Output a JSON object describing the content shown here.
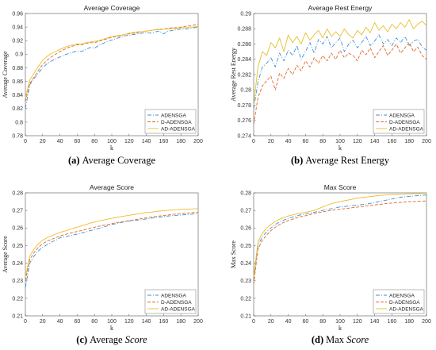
{
  "colors": {
    "ADENSGA": "#3f8fd2",
    "D-ADENSGA": "#e06a2c",
    "AD-ADENSGA": "#e8bf2a",
    "axis": "#555555"
  },
  "chart_data": [
    {
      "type": "line",
      "title": "Average Coverage",
      "xlabel": "k",
      "ylabel": "Average Coverage",
      "xlim": [
        0,
        200
      ],
      "ylim": [
        0.78,
        0.96
      ],
      "xticks": [
        "0",
        "20",
        "40",
        "60",
        "80",
        "100",
        "120",
        "140",
        "160",
        "180",
        "200"
      ],
      "yticks": [
        "0.78",
        "0.8",
        "0.82",
        "0.84",
        "0.86",
        "0.88",
        "0.9",
        "0.92",
        "0.94",
        "0.96"
      ],
      "legend_position": "bottom-right",
      "caption_letter": "(a)",
      "caption_text": "Average Coverage",
      "caption_em": "",
      "x": [
        0,
        5,
        10,
        15,
        20,
        25,
        30,
        35,
        40,
        45,
        50,
        55,
        60,
        65,
        70,
        75,
        80,
        85,
        90,
        95,
        100,
        105,
        110,
        115,
        120,
        125,
        130,
        135,
        140,
        145,
        150,
        155,
        160,
        165,
        170,
        175,
        180,
        185,
        190,
        195,
        200
      ],
      "series": [
        {
          "name": "ADENSGA",
          "style": "dashdot",
          "values": [
            0.82,
            0.855,
            0.864,
            0.872,
            0.88,
            0.886,
            0.89,
            0.893,
            0.896,
            0.899,
            0.901,
            0.903,
            0.905,
            0.904,
            0.907,
            0.91,
            0.909,
            0.913,
            0.916,
            0.919,
            0.921,
            0.923,
            0.925,
            0.927,
            0.928,
            0.929,
            0.93,
            0.931,
            0.932,
            0.931,
            0.933,
            0.934,
            0.93,
            0.934,
            0.935,
            0.936,
            0.937,
            0.937,
            0.938,
            0.939,
            0.94
          ]
        },
        {
          "name": "D-ADENSGA",
          "style": "dashed",
          "values": [
            0.83,
            0.857,
            0.866,
            0.876,
            0.885,
            0.891,
            0.896,
            0.9,
            0.904,
            0.907,
            0.91,
            0.912,
            0.914,
            0.914,
            0.916,
            0.917,
            0.917,
            0.919,
            0.921,
            0.923,
            0.925,
            0.926,
            0.927,
            0.929,
            0.93,
            0.931,
            0.932,
            0.933,
            0.934,
            0.935,
            0.936,
            0.937,
            0.937,
            0.938,
            0.939,
            0.939,
            0.94,
            0.941,
            0.942,
            0.943,
            0.944
          ]
        },
        {
          "name": "AD-ADENSGA",
          "style": "solid",
          "values": [
            0.836,
            0.862,
            0.872,
            0.882,
            0.891,
            0.897,
            0.901,
            0.904,
            0.907,
            0.91,
            0.912,
            0.914,
            0.915,
            0.915,
            0.917,
            0.918,
            0.919,
            0.92,
            0.922,
            0.924,
            0.926,
            0.927,
            0.928,
            0.929,
            0.931,
            0.932,
            0.933,
            0.933,
            0.934,
            0.935,
            0.936,
            0.936,
            0.937,
            0.937,
            0.938,
            0.938,
            0.939,
            0.939,
            0.94,
            0.94,
            0.941
          ]
        }
      ]
    },
    {
      "type": "line",
      "title": "Average Rest Energy",
      "xlabel": "k",
      "ylabel": "Average Rest Energy",
      "xlim": [
        0,
        200
      ],
      "ylim": [
        0.274,
        0.29
      ],
      "xticks": [
        "0",
        "20",
        "40",
        "60",
        "80",
        "100",
        "120",
        "140",
        "160",
        "180",
        "200"
      ],
      "yticks": [
        "0.274",
        "0.276",
        "0.278",
        "0.28",
        "0.282",
        "0.284",
        "0.286",
        "0.288",
        "0.29"
      ],
      "legend_position": "bottom-right",
      "caption_letter": "(b)",
      "caption_text": "Average Rest Energy",
      "caption_em": "",
      "x": [
        0,
        5,
        10,
        15,
        20,
        25,
        30,
        35,
        40,
        45,
        50,
        55,
        60,
        65,
        70,
        75,
        80,
        85,
        90,
        95,
        100,
        105,
        110,
        115,
        120,
        125,
        130,
        135,
        140,
        145,
        150,
        155,
        160,
        165,
        170,
        175,
        180,
        185,
        190,
        195,
        200
      ],
      "series": [
        {
          "name": "ADENSGA",
          "style": "dashdot",
          "values": [
            0.2775,
            0.281,
            0.283,
            0.2835,
            0.2842,
            0.283,
            0.2848,
            0.2838,
            0.2852,
            0.2845,
            0.2858,
            0.284,
            0.285,
            0.2862,
            0.2848,
            0.2866,
            0.286,
            0.287,
            0.2855,
            0.2862,
            0.2868,
            0.285,
            0.286,
            0.2865,
            0.2855,
            0.2862,
            0.287,
            0.2858,
            0.2864,
            0.2872,
            0.286,
            0.2866,
            0.2858,
            0.2868,
            0.2862,
            0.287,
            0.2858,
            0.2864,
            0.2866,
            0.2856,
            0.2852
          ]
        },
        {
          "name": "D-ADENSGA",
          "style": "dashed",
          "values": [
            0.2755,
            0.279,
            0.2805,
            0.2812,
            0.2818,
            0.28,
            0.2822,
            0.2815,
            0.2828,
            0.282,
            0.2832,
            0.2825,
            0.2838,
            0.283,
            0.2842,
            0.2835,
            0.2845,
            0.2838,
            0.2848,
            0.284,
            0.2852,
            0.2842,
            0.2848,
            0.2845,
            0.2838,
            0.2852,
            0.2846,
            0.2855,
            0.2842,
            0.285,
            0.2858,
            0.2845,
            0.2852,
            0.286,
            0.2848,
            0.2855,
            0.2862,
            0.285,
            0.2856,
            0.2845,
            0.284
          ]
        },
        {
          "name": "AD-ADENSGA",
          "style": "solid",
          "values": [
            0.278,
            0.283,
            0.285,
            0.2845,
            0.2862,
            0.2855,
            0.2868,
            0.285,
            0.2872,
            0.2862,
            0.287,
            0.286,
            0.2875,
            0.2865,
            0.2872,
            0.2878,
            0.2868,
            0.288,
            0.287,
            0.2876,
            0.287,
            0.288,
            0.2872,
            0.2868,
            0.2878,
            0.2872,
            0.2882,
            0.2875,
            0.2888,
            0.2878,
            0.2884,
            0.2876,
            0.2886,
            0.288,
            0.2888,
            0.2882,
            0.2892,
            0.288,
            0.2886,
            0.289,
            0.2884
          ]
        }
      ]
    },
    {
      "type": "line",
      "title": "Average Score",
      "xlabel": "k",
      "ylabel": "Average Score",
      "xlim": [
        0,
        200
      ],
      "ylim": [
        0.21,
        0.28
      ],
      "xticks": [
        "0",
        "20",
        "40",
        "60",
        "80",
        "100",
        "120",
        "140",
        "160",
        "180",
        "200"
      ],
      "yticks": [
        "0.21",
        "0.22",
        "0.23",
        "0.24",
        "0.25",
        "0.26",
        "0.27",
        "0.28"
      ],
      "legend_position": "bottom-right",
      "caption_letter": "(c)",
      "caption_text": "Average ",
      "caption_em": "Score",
      "x": [
        0,
        5,
        10,
        15,
        20,
        25,
        30,
        35,
        40,
        45,
        50,
        55,
        60,
        65,
        70,
        75,
        80,
        85,
        90,
        95,
        100,
        105,
        110,
        115,
        120,
        125,
        130,
        135,
        140,
        145,
        150,
        155,
        160,
        165,
        170,
        175,
        180,
        185,
        190,
        195,
        200
      ],
      "series": [
        {
          "name": "ADENSGA",
          "style": "dashdot",
          "values": [
            0.226,
            0.24,
            0.244,
            0.247,
            0.249,
            0.2505,
            0.252,
            0.253,
            0.2545,
            0.255,
            0.2555,
            0.256,
            0.2565,
            0.2572,
            0.2578,
            0.2585,
            0.259,
            0.2598,
            0.2605,
            0.2612,
            0.262,
            0.2625,
            0.263,
            0.2635,
            0.264,
            0.2642,
            0.2645,
            0.2648,
            0.2652,
            0.2655,
            0.266,
            0.2662,
            0.2665,
            0.2668,
            0.267,
            0.2672,
            0.2674,
            0.2676,
            0.2678,
            0.268,
            0.268
          ]
        },
        {
          "name": "D-ADENSGA",
          "style": "dashed",
          "values": [
            0.23,
            0.242,
            0.246,
            0.249,
            0.251,
            0.2525,
            0.2535,
            0.2545,
            0.2555,
            0.2562,
            0.2568,
            0.2575,
            0.258,
            0.2586,
            0.2592,
            0.2598,
            0.2604,
            0.261,
            0.2615,
            0.262,
            0.2625,
            0.263,
            0.2634,
            0.2638,
            0.2642,
            0.2646,
            0.265,
            0.2654,
            0.2658,
            0.2662,
            0.2665,
            0.2668,
            0.2671,
            0.2674,
            0.2677,
            0.268,
            0.2682,
            0.2684,
            0.2686,
            0.2688,
            0.269
          ]
        },
        {
          "name": "AD-ADENSGA",
          "style": "solid",
          "values": [
            0.232,
            0.244,
            0.248,
            0.251,
            0.253,
            0.2545,
            0.2555,
            0.2565,
            0.2575,
            0.2582,
            0.259,
            0.2598,
            0.2605,
            0.2612,
            0.262,
            0.2628,
            0.2634,
            0.264,
            0.2645,
            0.265,
            0.2655,
            0.266,
            0.2664,
            0.2668,
            0.2672,
            0.2676,
            0.268,
            0.2684,
            0.2688,
            0.269,
            0.2693,
            0.2696,
            0.2698,
            0.27,
            0.2702,
            0.2704,
            0.2706,
            0.2707,
            0.2708,
            0.2709,
            0.271
          ]
        }
      ]
    },
    {
      "type": "line",
      "title": "Max Score",
      "xlabel": "k",
      "ylabel": "Max Score",
      "xlim": [
        0,
        200
      ],
      "ylim": [
        0.21,
        0.28
      ],
      "xticks": [
        "0",
        "20",
        "40",
        "60",
        "80",
        "100",
        "120",
        "140",
        "160",
        "180",
        "200"
      ],
      "yticks": [
        "0.21",
        "0.22",
        "0.23",
        "0.24",
        "0.25",
        "0.26",
        "0.27",
        "0.28"
      ],
      "legend_position": "bottom-right",
      "caption_letter": "(d)",
      "caption_text": "Max ",
      "caption_em": "Score",
      "x": [
        0,
        5,
        10,
        15,
        20,
        25,
        30,
        35,
        40,
        45,
        50,
        55,
        60,
        65,
        70,
        75,
        80,
        85,
        90,
        95,
        100,
        105,
        110,
        115,
        120,
        125,
        130,
        135,
        140,
        145,
        150,
        155,
        160,
        165,
        170,
        175,
        180,
        185,
        190,
        195,
        200
      ],
      "series": [
        {
          "name": "ADENSGA",
          "style": "dashdot",
          "values": [
            0.23,
            0.25,
            0.255,
            0.258,
            0.26,
            0.262,
            0.2635,
            0.2645,
            0.2655,
            0.2662,
            0.267,
            0.2675,
            0.268,
            0.2685,
            0.269,
            0.2695,
            0.27,
            0.2705,
            0.271,
            0.2715,
            0.272,
            0.2722,
            0.2725,
            0.2728,
            0.273,
            0.2733,
            0.2736,
            0.274,
            0.2745,
            0.275,
            0.2755,
            0.276,
            0.2765,
            0.277,
            0.2775,
            0.2778,
            0.278,
            0.2782,
            0.2784,
            0.2786,
            0.2788
          ]
        },
        {
          "name": "D-ADENSGA",
          "style": "dashed",
          "values": [
            0.228,
            0.248,
            0.253,
            0.256,
            0.2585,
            0.2605,
            0.262,
            0.2632,
            0.2642,
            0.265,
            0.2658,
            0.2665,
            0.267,
            0.2676,
            0.2682,
            0.2688,
            0.2692,
            0.2696,
            0.27,
            0.2704,
            0.2707,
            0.271,
            0.2713,
            0.2716,
            0.2719,
            0.2722,
            0.2725,
            0.2728,
            0.2731,
            0.2734,
            0.2737,
            0.274,
            0.2742,
            0.2744,
            0.2746,
            0.2748,
            0.275,
            0.2751,
            0.2752,
            0.2753,
            0.2754
          ]
        },
        {
          "name": "AD-ADENSGA",
          "style": "solid",
          "values": [
            0.232,
            0.252,
            0.257,
            0.26,
            0.262,
            0.2638,
            0.265,
            0.266,
            0.2668,
            0.2675,
            0.268,
            0.2685,
            0.269,
            0.2695,
            0.27,
            0.271,
            0.272,
            0.273,
            0.2738,
            0.2745,
            0.275,
            0.2755,
            0.276,
            0.2765,
            0.277,
            0.2773,
            0.2776,
            0.2779,
            0.2782,
            0.2785,
            0.2787,
            0.2789,
            0.279,
            0.2791,
            0.2792,
            0.2793,
            0.2794,
            0.2795,
            0.2796,
            0.2797,
            0.2798
          ]
        }
      ]
    }
  ]
}
